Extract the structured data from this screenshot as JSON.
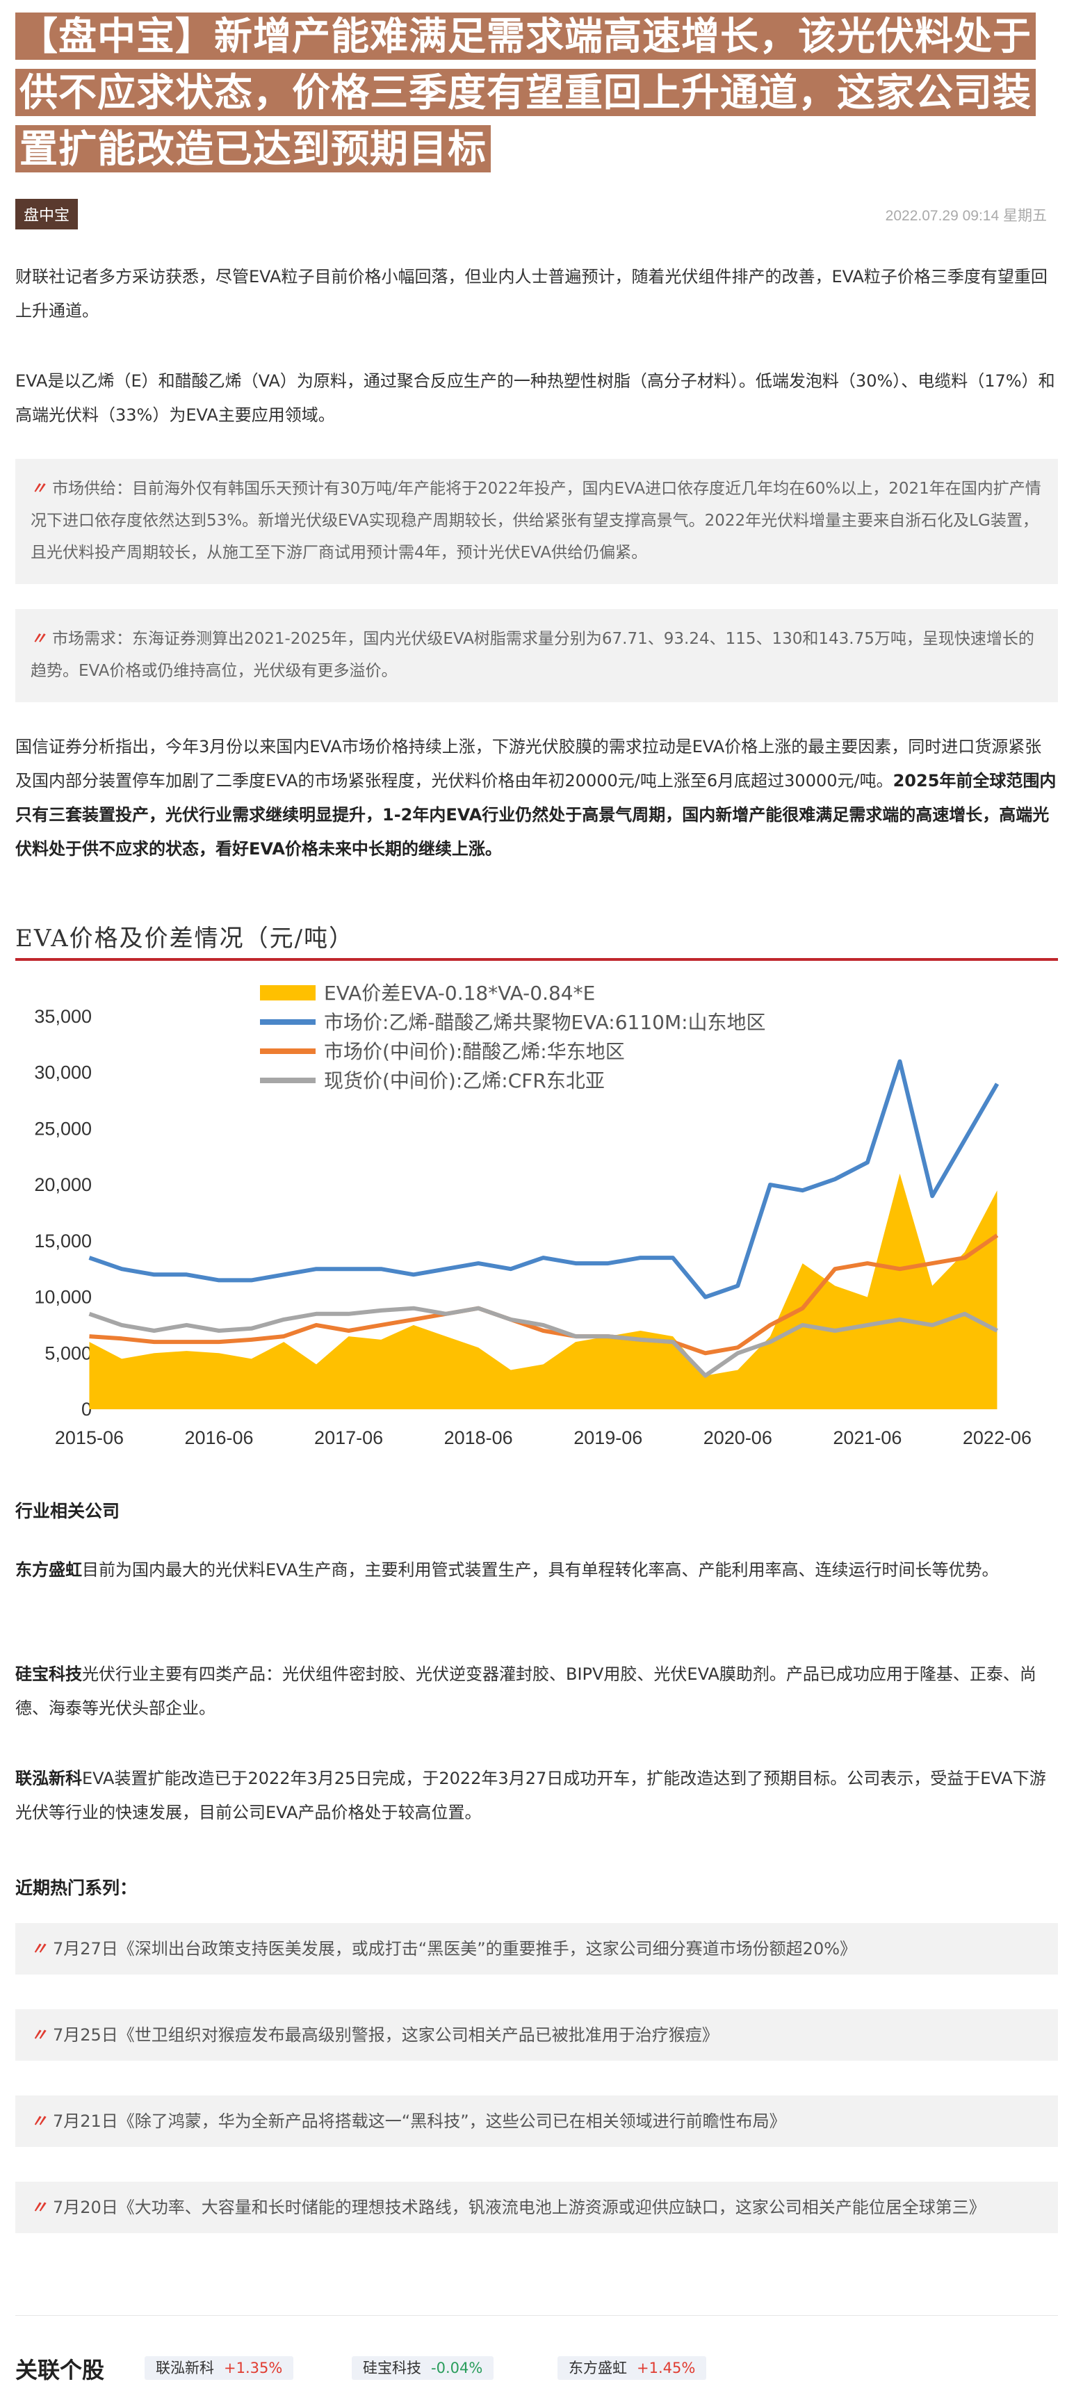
{
  "article": {
    "title": "【盘中宝】新增产能难满足需求端高速增长，该光伏料处于供不应求状态，价格三季度有望重回上升通道，这家公司装置扩能改造已达到预期目标",
    "tag": "盘中宝",
    "datetime": "2022.07.29 09:14 星期五",
    "para1": "财联社记者多方采访获悉，尽管EVA粒子目前价格小幅回落，但业内人士普遍预计，随着光伏组件排产的改善，EVA粒子价格三季度有望重回上升通道。",
    "para2": "EVA是以乙烯（E）和醋酸乙烯（VA）为原料，通过聚合反应生产的一种热塑性树脂（高分子材料）。低端发泡料（30%）、电缆料（17%）和高端光伏料（33%）为EVA主要应用领域。",
    "quote1": "市场供给：目前海外仅有韩国乐天预计有30万吨/年产能将于2022年投产，国内EVA进口依存度近几年均在60%以上，2021年在国内扩产情况下进口依存度依然达到53%。新增光伏级EVA实现稳产周期较长，供给紧张有望支撑高景气。2022年光伏料增量主要来自浙石化及LG装置，且光伏料投产周期较长，从施工至下游厂商试用预计需4年，预计光伏EVA供给仍偏紧。",
    "quote2": "市场需求：东海证券测算出2021-2025年，国内光伏级EVA树脂需求量分别为67.71、93.24、115、130和143.75万吨，呈现快速增长的趋势。EVA价格或仍维持高位，光伏级有更多溢价。",
    "para3_normal": "国信证券分析指出，今年3月份以来国内EVA市场价格持续上涨，下游光伏胶膜的需求拉动是EVA价格上涨的最主要因素，同时进口货源紧张及国内部分装置停车加剧了二季度EVA的市场紧张程度，光伏料价格由年初20000元/吨上涨至6月底超过30000元/吨。",
    "para3_bold": "2025年前全球范围内只有三套装置投产，光伏行业需求继续明显提升，1-2年内EVA行业仍然处于高景气周期，国内新增产能很难满足需求端的高速增长，高端光伏料处于供不应求的状态，看好EVA价格未来中长期的继续上涨。",
    "chart_heading": "EVA价格及价差情况（元/吨）",
    "companies_heading": "行业相关公司",
    "company1_name": "东方盛虹",
    "company1_text": "目前为国内最大的光伏料EVA生产商，主要利用管式装置生产，具有单程转化率高、产能利用率高、连续运行时间长等优势。",
    "company2_name": "硅宝科技",
    "company2_text": "光伏行业主要有四类产品：光伏组件密封胶、光伏逆变器灌封胶、BIPV用胶、光伏EVA膜助剂。产品已成功应用于隆基、正泰、尚德、海泰等光伏头部企业。",
    "company3_name": "联泓新科",
    "company3_text": "EVA装置扩能改造已于2022年3月25日完成，于2022年3月27日成功开车，扩能改造达到了预期目标。公司表示，受益于EVA下游光伏等行业的快速发展，目前公司EVA产品价格处于较高位置。",
    "hot_heading": "近期热门系列：",
    "hot_items": [
      "7月27日《深圳出台政策支持医美发展，或成打击“黑医美”的重要推手，这家公司细分赛道市场份额超20%》",
      "7月25日《世卫组织对猴痘发布最高级别警报，这家公司相关产品已被批准用于治疗猴痘》",
      "7月21日《除了鸿蒙，华为全新产品将搭载这一“黑科技”，这些公司已在相关领域进行前瞻性布局》",
      "7月20日《大功率、大容量和长时储能的理想技术路线，钒液流电池上游资源或迎供应缺口，这家公司相关产能位居全球第三》"
    ],
    "related_heading": "关联个股",
    "stocks": [
      {
        "name": "联泓新科",
        "change": "+1.35%"
      },
      {
        "name": "硅宝科技",
        "change": "-0.04%"
      },
      {
        "name": "东方盛虹",
        "change": "+1.45%"
      }
    ],
    "quote_mark": "〃"
  },
  "colors": {
    "title_bg": "#b4775a",
    "tag_bg": "#5a3a2e",
    "accent_red": "#c0272d",
    "up": "#e03c31",
    "down": "#2a9d5c"
  },
  "chart_data": {
    "type": "line",
    "ylim": [
      0,
      35000
    ],
    "yticks": [
      "0",
      "5,000",
      "10,000",
      "15,000",
      "20,000",
      "25,000",
      "30,000",
      "35,000"
    ],
    "xticks": [
      "2015-06",
      "2016-06",
      "2017-06",
      "2018-06",
      "2019-06",
      "2020-06",
      "2021-06",
      "2022-06"
    ],
    "grid": false,
    "legend_position": "top-center",
    "series": [
      {
        "name": "EVA价差EVA-0.18*VA-0.84*E",
        "kind": "area",
        "color": "#ffc000",
        "x": [
          "2015-06",
          "2015-09",
          "2015-12",
          "2016-03",
          "2016-06",
          "2016-09",
          "2016-12",
          "2017-03",
          "2017-06",
          "2017-09",
          "2017-12",
          "2018-03",
          "2018-06",
          "2018-09",
          "2018-12",
          "2019-03",
          "2019-06",
          "2019-09",
          "2019-12",
          "2020-03",
          "2020-06",
          "2020-09",
          "2020-12",
          "2021-03",
          "2021-06",
          "2021-09",
          "2021-12",
          "2022-03",
          "2022-06"
        ],
        "values": [
          6000,
          4500,
          5000,
          5200,
          5000,
          4500,
          6000,
          4000,
          6500,
          6200,
          7500,
          6500,
          5500,
          3500,
          4000,
          6000,
          6500,
          7000,
          6500,
          3000,
          3500,
          6500,
          13000,
          11000,
          10000,
          21000,
          11000,
          14000,
          19500
        ]
      },
      {
        "name": "市场价:乙烯-醋酸乙烯共聚物EVA:6110M:山东地区",
        "kind": "line",
        "color": "#4a86c8",
        "x": [
          "2015-06",
          "2015-09",
          "2015-12",
          "2016-03",
          "2016-06",
          "2016-09",
          "2016-12",
          "2017-03",
          "2017-06",
          "2017-09",
          "2017-12",
          "2018-03",
          "2018-06",
          "2018-09",
          "2018-12",
          "2019-03",
          "2019-06",
          "2019-09",
          "2019-12",
          "2020-03",
          "2020-06",
          "2020-09",
          "2020-12",
          "2021-03",
          "2021-06",
          "2021-09",
          "2021-12",
          "2022-03",
          "2022-06"
        ],
        "values": [
          13500,
          12500,
          12000,
          12000,
          11500,
          11500,
          12000,
          12500,
          12500,
          12500,
          12000,
          12500,
          13000,
          12500,
          13500,
          13000,
          13000,
          13500,
          13500,
          10000,
          11000,
          20000,
          19500,
          20500,
          22000,
          31000,
          19000,
          24000,
          29000
        ]
      },
      {
        "name": "市场价(中间价):醋酸乙烯:华东地区",
        "kind": "line",
        "color": "#ed7d31",
        "x": [
          "2015-06",
          "2015-09",
          "2015-12",
          "2016-03",
          "2016-06",
          "2016-09",
          "2016-12",
          "2017-03",
          "2017-06",
          "2017-09",
          "2017-12",
          "2018-03",
          "2018-06",
          "2018-09",
          "2018-12",
          "2019-03",
          "2019-06",
          "2019-09",
          "2019-12",
          "2020-03",
          "2020-06",
          "2020-09",
          "2020-12",
          "2021-03",
          "2021-06",
          "2021-09",
          "2021-12",
          "2022-03",
          "2022-06"
        ],
        "values": [
          6500,
          6300,
          6000,
          6000,
          6000,
          6200,
          6500,
          7500,
          7000,
          7500,
          8000,
          8500,
          9000,
          8000,
          7000,
          6500,
          6500,
          6200,
          6000,
          5000,
          5500,
          7500,
          9000,
          12500,
          13000,
          12500,
          13000,
          13500,
          15500
        ]
      },
      {
        "name": "现货价(中间价):乙烯:CFR东北亚",
        "kind": "line",
        "color": "#a6a6a6",
        "x": [
          "2015-06",
          "2015-09",
          "2015-12",
          "2016-03",
          "2016-06",
          "2016-09",
          "2016-12",
          "2017-03",
          "2017-06",
          "2017-09",
          "2017-12",
          "2018-03",
          "2018-06",
          "2018-09",
          "2018-12",
          "2019-03",
          "2019-06",
          "2019-09",
          "2019-12",
          "2020-03",
          "2020-06",
          "2020-09",
          "2020-12",
          "2021-03",
          "2021-06",
          "2021-09",
          "2021-12",
          "2022-03",
          "2022-06"
        ],
        "values": [
          8500,
          7500,
          7000,
          7500,
          7000,
          7200,
          8000,
          8500,
          8500,
          8800,
          9000,
          8500,
          9000,
          8000,
          7500,
          6500,
          6500,
          6200,
          6000,
          3000,
          5000,
          6000,
          7500,
          7000,
          7500,
          8000,
          7500,
          8500,
          7000
        ]
      }
    ]
  }
}
